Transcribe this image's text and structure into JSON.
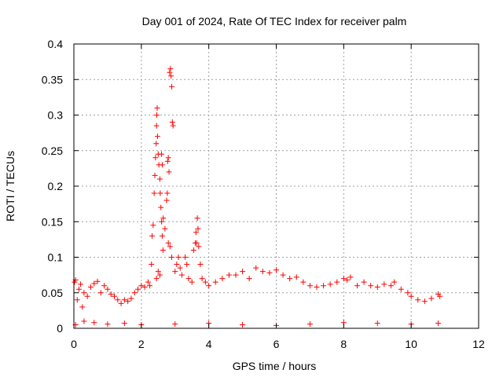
{
  "chart_data": {
    "type": "scatter",
    "title": "Day 001 of 2024, Rate Of TEC Index for receiver palm",
    "xlabel": "GPS time / hours",
    "ylabel": "ROTI / TECUs",
    "xlim": [
      0,
      12
    ],
    "ylim": [
      0,
      0.4
    ],
    "xticks": [
      "0",
      "2",
      "4",
      "6",
      "8",
      "10",
      "12"
    ],
    "yticks": [
      "0",
      "0.05",
      "0.1",
      "0.15",
      "0.2",
      "0.25",
      "0.3",
      "0.35",
      "0.4"
    ],
    "grid": true,
    "marker": "plus",
    "color": "#ff0000",
    "series": [
      {
        "name": "ROTI",
        "points": [
          [
            0.02,
            0.065
          ],
          [
            0.05,
            0.068
          ],
          [
            0.1,
            0.04
          ],
          [
            0.15,
            0.055
          ],
          [
            0.2,
            0.062
          ],
          [
            0.25,
            0.03
          ],
          [
            0.3,
            0.05
          ],
          [
            0.4,
            0.045
          ],
          [
            0.5,
            0.058
          ],
          [
            0.6,
            0.063
          ],
          [
            0.7,
            0.066
          ],
          [
            0.8,
            0.05
          ],
          [
            0.9,
            0.06
          ],
          [
            1.0,
            0.055
          ],
          [
            1.1,
            0.048
          ],
          [
            1.2,
            0.045
          ],
          [
            1.3,
            0.04
          ],
          [
            1.4,
            0.035
          ],
          [
            1.5,
            0.04
          ],
          [
            1.6,
            0.038
          ],
          [
            1.7,
            0.042
          ],
          [
            1.8,
            0.05
          ],
          [
            1.9,
            0.055
          ],
          [
            2.0,
            0.06
          ],
          [
            2.1,
            0.058
          ],
          [
            2.2,
            0.065
          ],
          [
            2.25,
            0.06
          ],
          [
            2.3,
            0.09
          ],
          [
            2.32,
            0.13
          ],
          [
            2.35,
            0.145
          ],
          [
            2.38,
            0.19
          ],
          [
            2.4,
            0.215
          ],
          [
            2.42,
            0.24
          ],
          [
            2.44,
            0.26
          ],
          [
            2.45,
            0.285
          ],
          [
            2.46,
            0.3
          ],
          [
            2.47,
            0.31
          ],
          [
            2.48,
            0.27
          ],
          [
            2.5,
            0.245
          ],
          [
            2.52,
            0.23
          ],
          [
            2.55,
            0.21
          ],
          [
            2.56,
            0.19
          ],
          [
            2.58,
            0.17
          ],
          [
            2.6,
            0.15
          ],
          [
            2.62,
            0.13
          ],
          [
            2.64,
            0.11
          ],
          [
            2.5,
            0.08
          ],
          [
            2.55,
            0.075
          ],
          [
            2.45,
            0.07
          ],
          [
            2.6,
            0.245
          ],
          [
            2.62,
            0.23
          ],
          [
            2.65,
            0.155
          ],
          [
            2.7,
            0.14
          ],
          [
            2.75,
            0.18
          ],
          [
            2.77,
            0.19
          ],
          [
            2.78,
            0.235
          ],
          [
            2.8,
            0.24
          ],
          [
            2.82,
            0.22
          ],
          [
            2.84,
            0.36
          ],
          [
            2.86,
            0.365
          ],
          [
            2.88,
            0.355
          ],
          [
            2.9,
            0.34
          ],
          [
            2.92,
            0.29
          ],
          [
            2.94,
            0.285
          ],
          [
            2.8,
            0.12
          ],
          [
            2.85,
            0.115
          ],
          [
            2.9,
            0.1
          ],
          [
            3.0,
            0.08
          ],
          [
            3.05,
            0.09
          ],
          [
            3.1,
            0.1
          ],
          [
            3.15,
            0.085
          ],
          [
            3.2,
            0.075
          ],
          [
            3.3,
            0.1
          ],
          [
            3.35,
            0.09
          ],
          [
            3.4,
            0.07
          ],
          [
            3.5,
            0.065
          ],
          [
            3.55,
            0.11
          ],
          [
            3.6,
            0.12
          ],
          [
            3.62,
            0.135
          ],
          [
            3.64,
            0.12
          ],
          [
            3.66,
            0.155
          ],
          [
            3.68,
            0.14
          ],
          [
            3.7,
            0.115
          ],
          [
            3.75,
            0.09
          ],
          [
            3.8,
            0.07
          ],
          [
            3.9,
            0.065
          ],
          [
            4.0,
            0.06
          ],
          [
            4.2,
            0.065
          ],
          [
            4.4,
            0.07
          ],
          [
            4.6,
            0.075
          ],
          [
            4.8,
            0.075
          ],
          [
            5.0,
            0.08
          ],
          [
            5.2,
            0.07
          ],
          [
            5.4,
            0.085
          ],
          [
            5.6,
            0.08
          ],
          [
            5.8,
            0.078
          ],
          [
            6.0,
            0.082
          ],
          [
            6.2,
            0.075
          ],
          [
            6.4,
            0.07
          ],
          [
            6.6,
            0.072
          ],
          [
            6.8,
            0.065
          ],
          [
            7.0,
            0.06
          ],
          [
            7.2,
            0.058
          ],
          [
            7.4,
            0.06
          ],
          [
            7.6,
            0.062
          ],
          [
            7.8,
            0.065
          ],
          [
            8.0,
            0.07
          ],
          [
            8.1,
            0.068
          ],
          [
            8.2,
            0.072
          ],
          [
            8.4,
            0.06
          ],
          [
            8.6,
            0.065
          ],
          [
            8.8,
            0.06
          ],
          [
            9.0,
            0.058
          ],
          [
            9.2,
            0.062
          ],
          [
            9.4,
            0.06
          ],
          [
            9.5,
            0.065
          ],
          [
            9.7,
            0.055
          ],
          [
            9.9,
            0.05
          ],
          [
            10.0,
            0.045
          ],
          [
            10.2,
            0.04
          ],
          [
            10.4,
            0.038
          ],
          [
            10.6,
            0.042
          ],
          [
            10.8,
            0.048
          ],
          [
            10.85,
            0.045
          ],
          [
            0.05,
            0.005
          ],
          [
            0.3,
            0.01
          ],
          [
            0.6,
            0.008
          ],
          [
            1.0,
            0.006
          ],
          [
            1.5,
            0.007
          ],
          [
            2.0,
            0.005
          ],
          [
            3.0,
            0.006
          ],
          [
            4.0,
            0.007
          ],
          [
            5.0,
            0.005
          ],
          [
            6.0,
            0.004
          ],
          [
            7.0,
            0.006
          ],
          [
            8.0,
            0.008
          ],
          [
            9.0,
            0.007
          ],
          [
            10.0,
            0.006
          ],
          [
            10.8,
            0.007
          ]
        ]
      }
    ]
  }
}
